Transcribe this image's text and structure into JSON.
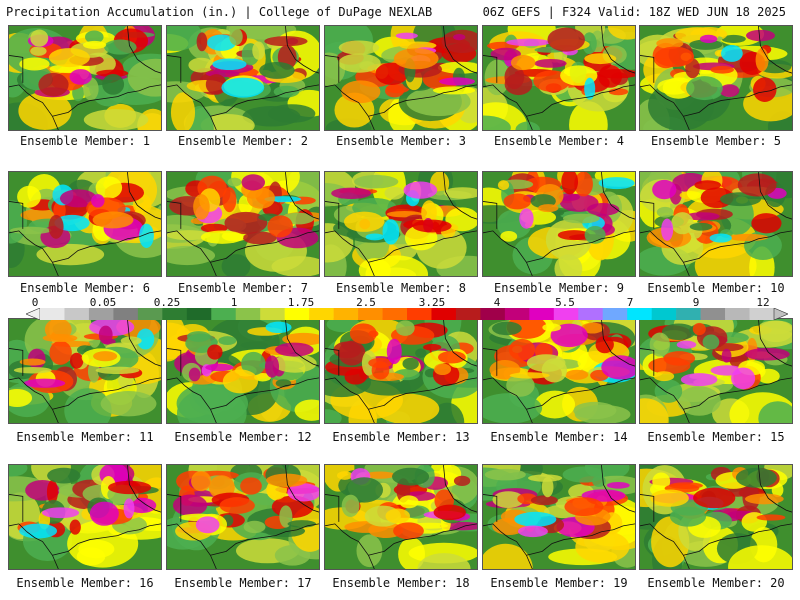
{
  "header": {
    "left": "Precipitation Accumulation (in.) | College of DuPage NEXLAB",
    "right": "06Z GEFS | F324 Valid: 18Z WED JUN 18 2025"
  },
  "caption_label": "Ensemble Member:",
  "members": [
    "1",
    "2",
    "3",
    "4",
    "5",
    "6",
    "7",
    "8",
    "9",
    "10",
    "11",
    "12",
    "13",
    "14",
    "15",
    "16",
    "17",
    "18",
    "19",
    "20"
  ],
  "colorbar": {
    "tick_labels": [
      "0",
      "0.05",
      "0.25",
      "1",
      "1.75",
      "2.5",
      "3.25",
      "4",
      "5.5",
      "7",
      "9",
      "12"
    ],
    "colors": [
      "#e8e8e8",
      "#c8c8c8",
      "#a0a0a0",
      "#808080",
      "#5a9a50",
      "#2e7d32",
      "#1f6b2a",
      "#4caf50",
      "#8bc34a",
      "#cddc39",
      "#ffff00",
      "#ffd600",
      "#ffb300",
      "#ff8f00",
      "#ff6d00",
      "#ff3d00",
      "#e00000",
      "#b71c1c",
      "#a0004a",
      "#c2007a",
      "#e000c0",
      "#f040f0",
      "#b070ff",
      "#6fa8ff",
      "#00e5ff",
      "#00c8d0",
      "#30b0b0",
      "#909090",
      "#b8b8b8",
      "#d0d0d0"
    ]
  }
}
